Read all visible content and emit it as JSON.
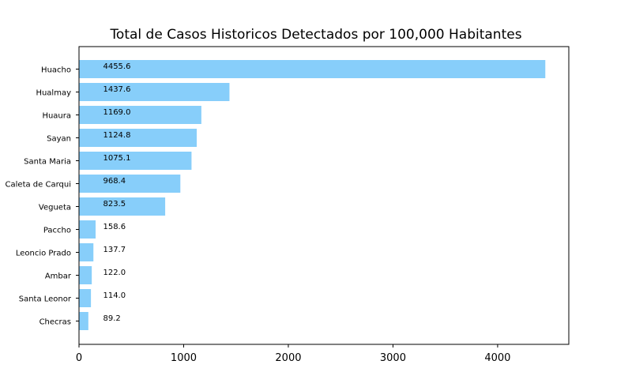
{
  "chart_data": {
    "type": "bar",
    "orientation": "horizontal",
    "title": "Total de Casos Historicos Detectados por 100,000 Habitantes",
    "xlabel": "",
    "ylabel": "",
    "categories": [
      "Huacho",
      "Hualmay",
      "Huaura",
      "Sayan",
      "Santa Maria",
      "Caleta de Carqui",
      "Vegueta",
      "Paccho",
      "Leoncio Prado",
      "Ambar",
      "Santa Leonor",
      "Checras"
    ],
    "values": [
      4455.6,
      1437.6,
      1169.0,
      1124.8,
      1075.1,
      968.4,
      823.5,
      158.6,
      137.7,
      122.0,
      114.0,
      89.2
    ],
    "value_labels": [
      "4455.6",
      "1437.6",
      "1169.0",
      "1124.8",
      "1075.1",
      "968.4",
      "823.5",
      "158.6",
      "137.7",
      "122.0",
      "114.0",
      "89.2"
    ],
    "data_label_x": 230,
    "xlim": [
      0,
      4680
    ],
    "xticks": [
      0,
      1000,
      2000,
      3000,
      4000
    ],
    "xtick_labels": [
      "0",
      "1000",
      "2000",
      "3000",
      "4000"
    ],
    "grid": false,
    "legend": "none",
    "bar_color": "#87cefa"
  }
}
